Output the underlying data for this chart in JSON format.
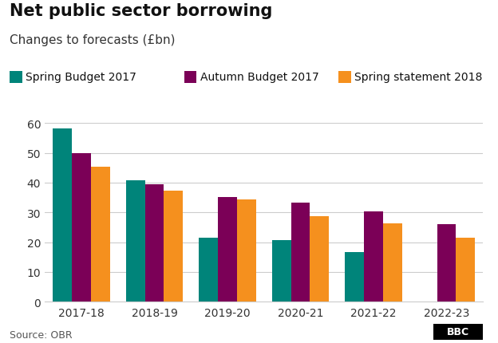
{
  "title": "Net public sector borrowing",
  "subtitle": "Changes to forecasts (£bn)",
  "source": "Source: OBR",
  "categories": [
    "2017-18",
    "2018-19",
    "2019-20",
    "2020-21",
    "2021-22",
    "2022-23"
  ],
  "series": [
    {
      "name": "Spring Budget 2017",
      "color": "#00847a",
      "values": [
        58.3,
        40.8,
        21.4,
        20.6,
        16.8,
        null
      ]
    },
    {
      "name": "Autumn Budget 2017",
      "color": "#7b0057",
      "values": [
        49.9,
        39.5,
        35.1,
        33.3,
        30.3,
        26.0
      ]
    },
    {
      "name": "Spring statement 2018",
      "color": "#f5901e",
      "values": [
        45.2,
        37.3,
        34.4,
        28.8,
        26.2,
        21.4
      ]
    }
  ],
  "ylim": [
    0,
    60
  ],
  "yticks": [
    0,
    10,
    20,
    30,
    40,
    50,
    60
  ],
  "bar_width": 0.26,
  "background_color": "#ffffff",
  "title_fontsize": 15,
  "subtitle_fontsize": 11,
  "legend_fontsize": 10,
  "tick_fontsize": 10,
  "source_fontsize": 9
}
